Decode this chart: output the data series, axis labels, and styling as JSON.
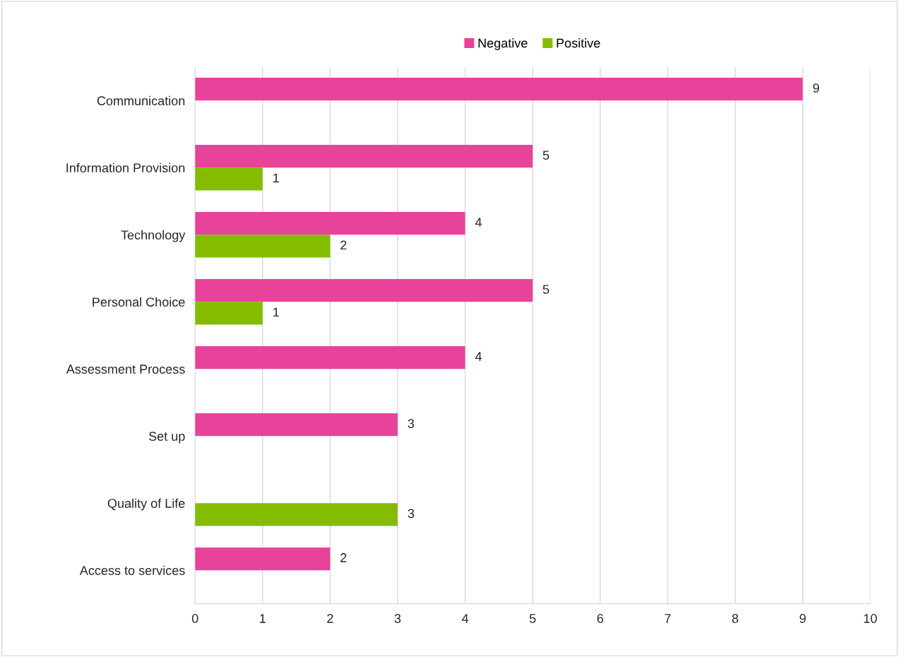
{
  "chart_data": {
    "type": "bar",
    "orientation": "horizontal",
    "categories": [
      "Communication",
      "Information Provision",
      "Technology",
      "Personal Choice",
      "Assessment Process",
      "Set up",
      "Quality of Life",
      "Access to services"
    ],
    "series": [
      {
        "name": "Negative",
        "color": "#e8439a",
        "values": [
          9,
          5,
          4,
          5,
          4,
          3,
          null,
          2
        ]
      },
      {
        "name": "Positive",
        "color": "#84bd00",
        "values": [
          null,
          1,
          2,
          1,
          null,
          null,
          3,
          null
        ]
      }
    ],
    "xlim": [
      0,
      10
    ],
    "xticks": [
      0,
      1,
      2,
      3,
      4,
      5,
      6,
      7,
      8,
      9,
      10
    ],
    "grid": "x",
    "legend": "top",
    "data_labels": true
  }
}
